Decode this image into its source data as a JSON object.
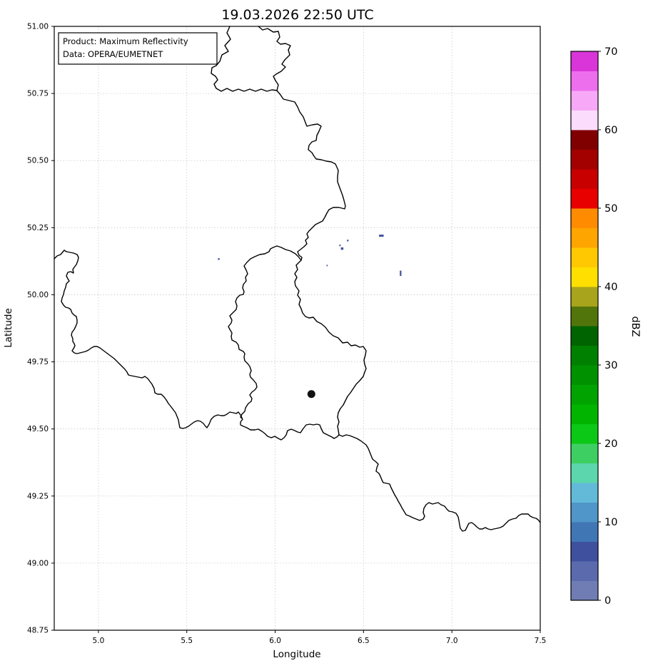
{
  "title": "19.03.2026 22:50 UTC",
  "annotation_box": {
    "line1": "Product: Maximum Reflectivity",
    "line2": "Data: OPERA/EUMETNET"
  },
  "axes": {
    "xlabel": "Longitude",
    "ylabel": "Latitude",
    "xlim": [
      4.75,
      7.5
    ],
    "ylim": [
      48.75,
      51.0
    ],
    "xticks": [
      5.0,
      5.5,
      6.0,
      6.5,
      7.0,
      7.5
    ],
    "xtick_labels": [
      "5.0",
      "5.5",
      "6.0",
      "6.5",
      "7.0",
      "7.5"
    ],
    "yticks": [
      48.75,
      49.0,
      49.25,
      49.5,
      49.75,
      50.0,
      50.25,
      50.5,
      50.75,
      51.0
    ],
    "ytick_labels": [
      "48.75",
      "49.00",
      "49.25",
      "49.50",
      "49.75",
      "50.00",
      "50.25",
      "50.50",
      "50.75",
      "51.00"
    ],
    "grid": "dashed",
    "grid_color": "#c9c9c9"
  },
  "colorbar": {
    "label": "dBZ",
    "vmin": 0,
    "vmax": 70,
    "step": 2.5,
    "ticks": [
      0,
      10,
      20,
      30,
      40,
      50,
      60,
      70
    ],
    "tick_labels": [
      "0",
      "10",
      "20",
      "30",
      "40",
      "50",
      "60",
      "70"
    ],
    "colors_bottom_to_top": [
      "#707db4",
      "#5a6aac",
      "#3f519e",
      "#4176b5",
      "#5096c8",
      "#62bad8",
      "#5cd6ad",
      "#3ecf63",
      "#0bc816",
      "#00b400",
      "#00a300",
      "#009100",
      "#008000",
      "#006400",
      "#52750b",
      "#a8a41b",
      "#ffdf00",
      "#ffc800",
      "#ffa500",
      "#ff8c00",
      "#e80000",
      "#c80000",
      "#a30000",
      "#800000",
      "#fcdcfc",
      "#f7a9f7",
      "#ee6fee",
      "#d935d9"
    ]
  },
  "chart_data": {
    "type": "heatmap",
    "title": "19.03.2026 22:50 UTC",
    "xlabel": "Longitude",
    "ylabel": "Latitude",
    "xlim": [
      4.75,
      7.5
    ],
    "ylim": [
      48.75,
      51.0
    ],
    "units": "dBZ",
    "echoes": [
      {
        "lon": 5.681,
        "lat": 50.133,
        "w": 0.01,
        "h": 0.006,
        "dbz": 5
      },
      {
        "lon": 6.367,
        "lat": 50.184,
        "w": 0.009,
        "h": 0.006,
        "dbz": 2.5
      },
      {
        "lon": 6.379,
        "lat": 50.172,
        "w": 0.014,
        "h": 0.009,
        "dbz": 5
      },
      {
        "lon": 6.411,
        "lat": 50.202,
        "w": 0.009,
        "h": 0.006,
        "dbz": 5
      },
      {
        "lon": 6.294,
        "lat": 50.109,
        "w": 0.007,
        "h": 0.005,
        "dbz": 5
      },
      {
        "lon": 6.601,
        "lat": 50.22,
        "w": 0.026,
        "h": 0.008,
        "dbz": 5
      },
      {
        "lon": 6.71,
        "lat": 50.08,
        "w": 0.009,
        "h": 0.02,
        "dbz": 5
      }
    ],
    "site_marker": {
      "lon": 6.205,
      "lat": 49.63,
      "color": "#111111",
      "radius_px": 5.5
    }
  },
  "map_borders": {
    "stroke": "#000000",
    "width": 1.4,
    "lines": [
      {
        "name": "border-nl-be-west",
        "closed": false,
        "points": [
          322,
          37,
          318,
          46,
          323,
          55,
          315,
          64,
          320,
          72,
          311,
          77,
          308,
          86,
          303,
          92,
          297,
          95,
          296,
          103,
          302,
          107,
          305,
          112,
          300,
          118,
          303,
          124,
          310,
          128,
          318,
          124,
          326,
          128,
          334,
          125,
          342,
          128,
          350,
          125,
          358,
          128,
          366,
          125,
          374,
          128,
          381,
          126,
          388,
          127
        ]
      },
      {
        "name": "border-nl-de-east",
        "closed": false,
        "points": [
          362,
          37,
          368,
          42,
          375,
          40,
          383,
          45,
          390,
          44,
          392,
          52,
          388,
          58,
          393,
          62,
          400,
          61,
          407,
          64,
          404,
          70,
          406,
          77,
          399,
          84,
          395,
          90,
          400,
          94,
          394,
          100,
          387,
          104,
          383,
          107,
          386,
          113,
          390,
          119,
          388,
          127
        ]
      },
      {
        "name": "border-be-de",
        "closed": false,
        "points": [
          388,
          127,
          393,
          133,
          397,
          139,
          405,
          141,
          413,
          143,
          417,
          150,
          420,
          157,
          425,
          164,
          428,
          172,
          430,
          177,
          438,
          175,
          445,
          174,
          450,
          177,
          447,
          184,
          444,
          190,
          443,
          197,
          437,
          199,
          433,
          204,
          432,
          210,
          437,
          214,
          440,
          219,
          443,
          223,
          450,
          224,
          457,
          226,
          464,
          227,
          470,
          230,
          474,
          239,
          473,
          248,
          473,
          255,
          477,
          266,
          480,
          274,
          482,
          281,
          484,
          289,
          483,
          293,
          475,
          291,
          467,
          291,
          461,
          294,
          458,
          299,
          455,
          305,
          452,
          310,
          446,
          313,
          442,
          315,
          438,
          319,
          433,
          324,
          430,
          328,
          432,
          333,
          428,
          337,
          430,
          342,
          426,
          346,
          421,
          350,
          417,
          353,
          419,
          358,
          423,
          361,
          422,
          365
        ]
      },
      {
        "name": "border-luxembourg",
        "closed": true,
        "points": [
          422,
          365,
          418,
          360,
          414,
          356,
          407,
          352,
          400,
          350,
          394,
          347,
          388,
          345,
          383,
          347,
          379,
          349,
          377,
          353,
          371,
          356,
          364,
          357,
          357,
          360,
          351,
          363,
          346,
          368,
          342,
          373,
          345,
          379,
          347,
          384,
          344,
          389,
          345,
          394,
          341,
          399,
          340,
          404,
          342,
          409,
          341,
          413,
          336,
          414,
          332,
          418,
          330,
          423,
          332,
          429,
          331,
          434,
          326,
          439,
          322,
          443,
          325,
          449,
          324,
          453,
          320,
          458,
          322,
          462,
          325,
          467,
          324,
          472,
          325,
          477,
          331,
          480,
          334,
          484,
          335,
          490,
          341,
          493,
          343,
          496,
          342,
          501,
          343,
          506,
          347,
          510,
          350,
          514,
          352,
          520,
          350,
          525,
          351,
          529,
          355,
          533,
          359,
          538,
          360,
          543,
          357,
          547,
          353,
          550,
          350,
          554,
          353,
          559,
          352,
          563,
          348,
          566,
          344,
          572,
          343,
          577,
          339,
          581,
          337,
          585,
          340,
          588,
          337,
          592,
          337,
          596,
          341,
          598,
          346,
          600,
          351,
          603,
          357,
          603,
          362,
          602,
          367,
          605,
          371,
          608,
          375,
          612,
          380,
          614,
          385,
          612,
          390,
          615,
          394,
          617,
          398,
          614,
          401,
          610,
          403,
          604,
          408,
          602,
          413,
          604,
          417,
          606,
          421,
          607,
          425,
          601,
          429,
          596,
          434,
          595,
          439,
          596,
          444,
          595,
          448,
          596,
          450,
          601,
          453,
          607,
          457,
          609,
          461,
          611,
          465,
          613,
          468,
          615,
          472,
          613,
          475,
          610,
          474,
          603,
          473,
          598,
          475,
          592,
          473,
          585,
          474,
          579,
          477,
          573,
          481,
          568,
          484,
          562,
          487,
          556,
          491,
          551,
          495,
          545,
          499,
          539,
          504,
          534,
          509,
          528,
          511,
          522,
          513,
          517,
          511,
          511,
          510,
          505,
          512,
          498,
          513,
          492,
          509,
          486,
          504,
          487,
          498,
          484,
          492,
          485,
          487,
          480,
          480,
          481,
          474,
          474,
          467,
          471,
          461,
          466,
          456,
          459,
          450,
          454,
          444,
          451,
          439,
          445,
          433,
          446,
          428,
          444,
          424,
          439,
          422,
          433,
          419,
          427,
          421,
          420,
          417,
          414,
          419,
          408,
          414,
          401,
          413,
          395,
          416,
          389,
          413,
          384,
          417,
          378,
          415,
          372,
          419,
          368
        ]
      },
      {
        "name": "border-fr-de",
        "closed": false,
        "points": [
          475,
          610,
          480,
          612,
          485,
          610,
          490,
          611,
          495,
          613,
          500,
          615,
          505,
          618,
          509,
          621,
          513,
          624,
          516,
          629,
          518,
          634,
          520,
          639,
          522,
          644,
          527,
          648,
          530,
          651,
          528,
          656,
          527,
          661,
          531,
          664,
          533,
          668,
          535,
          673,
          537,
          677,
          542,
          678,
          546,
          679,
          548,
          684,
          550,
          688,
          553,
          694,
          556,
          699,
          558,
          703,
          561,
          708,
          563,
          712,
          566,
          717,
          569,
          722,
          574,
          724,
          578,
          726,
          583,
          728,
          588,
          730,
          593,
          728,
          595,
          724,
          593,
          719,
          594,
          713,
          597,
          708,
          601,
          705,
          606,
          707,
          610,
          706,
          614,
          705,
          618,
          708,
          623,
          710,
          626,
          714,
          629,
          717,
          634,
          718,
          639,
          720,
          642,
          725,
          643,
          730,
          644,
          736,
          645,
          741,
          648,
          745,
          652,
          744,
          655,
          738,
          657,
          734,
          661,
          733,
          665,
          736,
          668,
          739,
          672,
          742,
          676,
          742,
          680,
          740,
          684,
          742,
          688,
          743,
          692,
          742,
          697,
          741,
          701,
          740,
          705,
          738,
          709,
          734,
          713,
          730,
          718,
          728,
          723,
          727,
          727,
          723,
          731,
          721,
          736,
          721,
          740,
          721,
          743,
          724,
          747,
          726,
          751,
          727,
          754,
          729,
          757,
          733
        ]
      },
      {
        "name": "border-fr-be",
        "closed": false,
        "points": [
          76,
          363,
          80,
          359,
          85,
          357,
          90,
          351,
          93,
          353,
          98,
          354,
          103,
          355,
          108,
          357,
          110,
          361,
          109,
          366,
          107,
          371,
          104,
          375,
          102,
          378,
          103,
          383,
          99,
          381,
          95,
          382,
          93,
          387,
          95,
          391,
          97,
          394,
          93,
          398,
          92,
          403,
          90,
          408,
          89,
          413,
          87,
          418,
          86,
          423,
          89,
          428,
          92,
          431,
          96,
          432,
          99,
          434,
          101,
          439,
          104,
          442,
          107,
          444,
          108,
          449,
          108,
          453,
          106,
          458,
          104,
          462,
          101,
          466,
          100,
          470,
          102,
          475,
          102,
          479,
          104,
          482,
          105,
          485,
          103,
          489,
          101,
          492,
          104,
          495,
          108,
          496,
          112,
          495,
          116,
          494,
          120,
          493,
          124,
          491,
          128,
          488,
          132,
          486,
          136,
          486,
          140,
          488,
          144,
          491,
          148,
          494,
          152,
          497,
          156,
          500,
          160,
          503,
          163,
          506,
          167,
          510,
          171,
          514,
          175,
          518,
          178,
          522,
          180,
          526,
          184,
          527,
          189,
          528,
          194,
          529,
          199,
          530,
          203,
          528,
          207,
          531,
          210,
          535,
          213,
          539,
          216,
          545,
          217,
          551,
          221,
          553,
          226,
          553,
          230,
          557,
          233,
          561,
          236,
          566,
          240,
          571,
          243,
          575,
          246,
          579,
          248,
          584,
          250,
          589,
          251,
          595,
          252,
          600,
          256,
          601,
          260,
          600,
          264,
          598,
          268,
          595,
          272,
          592,
          277,
          590,
          281,
          591,
          285,
          594,
          288,
          598,
          290,
          600,
          293,
          595,
          296,
          588,
          300,
          584,
          305,
          582,
          310,
          583,
          314,
          583,
          318,
          581,
          322,
          578,
          327,
          579,
          331,
          580,
          334,
          578,
          337,
          582,
          339,
          586
        ]
      }
    ]
  }
}
